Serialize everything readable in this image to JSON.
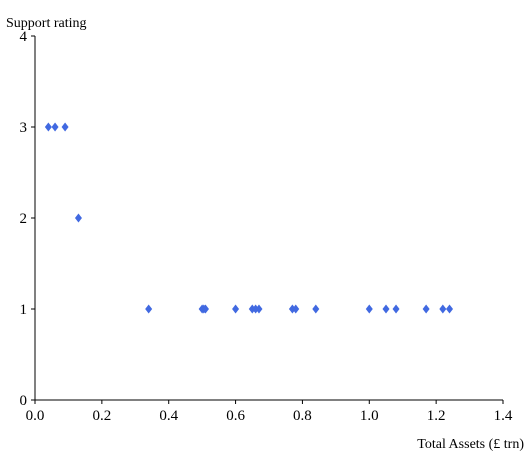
{
  "chart_data": {
    "type": "scatter",
    "title": "",
    "xlabel": "Total Assets (£ trn)",
    "ylabel": "Support rating",
    "xlim": [
      0,
      1.4
    ],
    "ylim": [
      0,
      4
    ],
    "x_ticks": [
      "0.0",
      "0.2",
      "0.4",
      "0.6",
      "0.8",
      "1.0",
      "1.2",
      "1.4"
    ],
    "y_ticks": [
      "0",
      "1",
      "2",
      "3",
      "4"
    ],
    "grid": false,
    "marker": "diamond",
    "marker_color": "#4169E1",
    "series": [
      {
        "x": [
          0.04,
          0.06,
          0.09,
          0.13,
          0.34,
          0.5,
          0.505,
          0.51,
          0.6,
          0.65,
          0.66,
          0.67,
          0.77,
          0.78,
          0.84,
          1.0,
          1.05,
          1.08,
          1.17,
          1.22,
          1.24
        ],
        "y": [
          3,
          3,
          3,
          2,
          1,
          1,
          1,
          1,
          1,
          1,
          1,
          1,
          1,
          1,
          1,
          1,
          1,
          1,
          1,
          1,
          1
        ]
      }
    ]
  }
}
